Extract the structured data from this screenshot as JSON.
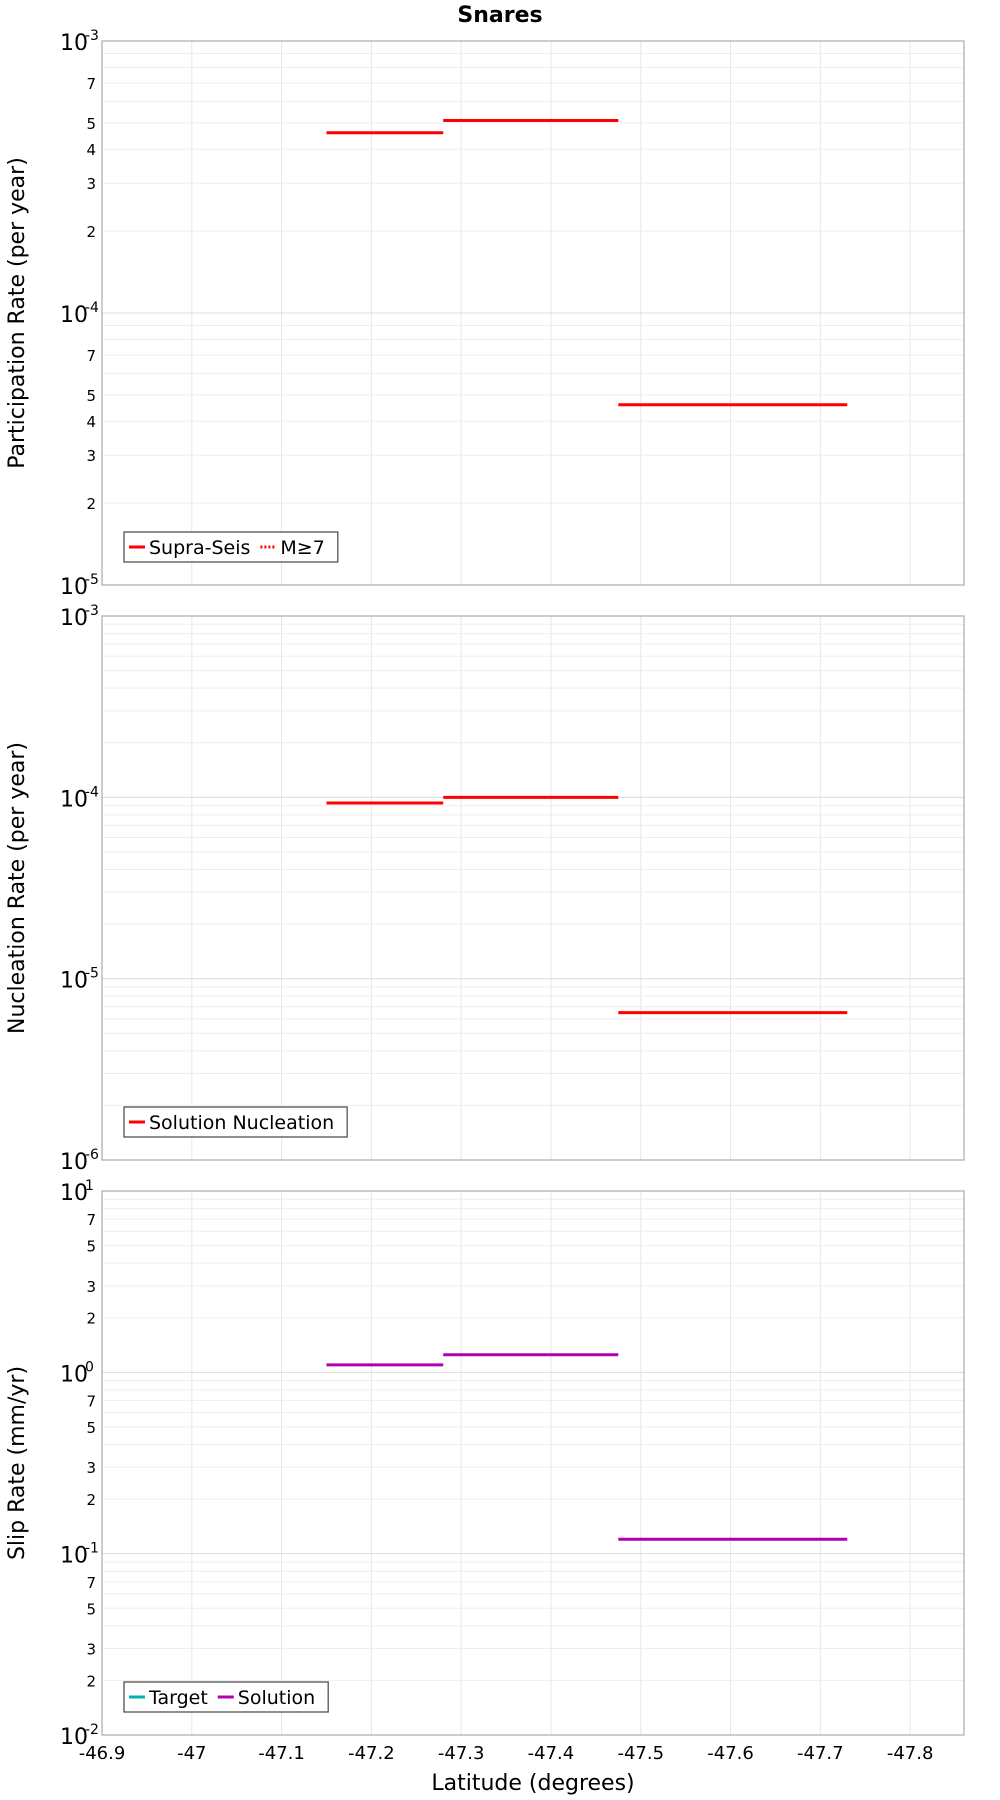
{
  "chart_data": {
    "type": "line",
    "title": "Snares",
    "xlabel": "Latitude (degrees)",
    "xlim": [
      -46.9,
      -47.86
    ],
    "x_ticks": [
      "-46.9",
      "-47",
      "-47.1",
      "-47.2",
      "-47.3",
      "-47.4",
      "-47.5",
      "-47.6",
      "-47.7",
      "-47.8"
    ],
    "x_tick_values": [
      -46.9,
      -47.0,
      -47.1,
      -47.2,
      -47.3,
      -47.4,
      -47.5,
      -47.6,
      -47.7,
      -47.8
    ],
    "grid": true,
    "panels": [
      {
        "ylabel": "Participation Rate (per year)",
        "yscale": "log",
        "ylim": [
          1e-05,
          0.001
        ],
        "major_ticks": [
          {
            "base": "10",
            "exp": "-3",
            "value": 0.001
          },
          {
            "base": "10",
            "exp": "-4",
            "value": 0.0001
          },
          {
            "base": "10",
            "exp": "-5",
            "value": 1e-05
          }
        ],
        "minor_ticks": [
          {
            "label": "7",
            "value": 0.0007
          },
          {
            "label": "5",
            "value": 0.0005
          },
          {
            "label": "4",
            "value": 0.0004
          },
          {
            "label": "3",
            "value": 0.0003
          },
          {
            "label": "2",
            "value": 0.0002
          },
          {
            "label": "7",
            "value": 7e-05
          },
          {
            "label": "5",
            "value": 5e-05
          },
          {
            "label": "4",
            "value": 4e-05
          },
          {
            "label": "3",
            "value": 3e-05
          },
          {
            "label": "2",
            "value": 2e-05
          }
        ],
        "legend_position": "bottom-left",
        "legend": [
          {
            "label": "Supra-Seis",
            "color": "#ff0000",
            "style": "solid"
          },
          {
            "label": "M≥7",
            "color": "#ff0000",
            "style": "dotted"
          }
        ],
        "series": [
          {
            "name": "Supra-Seis",
            "color": "#ff0000",
            "segments": [
              {
                "x": [
                  -47.15,
                  -47.28
                ],
                "y": 0.00046
              },
              {
                "x": [
                  -47.28,
                  -47.475
                ],
                "y": 0.00051
              },
              {
                "x": [
                  -47.475,
                  -47.73
                ],
                "y": 4.6e-05
              }
            ]
          }
        ]
      },
      {
        "ylabel": "Nucleation Rate (per year)",
        "yscale": "log",
        "ylim": [
          1e-06,
          0.001
        ],
        "major_ticks": [
          {
            "base": "10",
            "exp": "-3",
            "value": 0.001
          },
          {
            "base": "10",
            "exp": "-4",
            "value": 0.0001
          },
          {
            "base": "10",
            "exp": "-5",
            "value": 1e-05
          },
          {
            "base": "10",
            "exp": "-6",
            "value": 1e-06
          }
        ],
        "minor_ticks": [],
        "legend_position": "bottom-left",
        "legend": [
          {
            "label": "Solution Nucleation",
            "color": "#ff0000",
            "style": "solid"
          }
        ],
        "series": [
          {
            "name": "Solution Nucleation",
            "color": "#ff0000",
            "segments": [
              {
                "x": [
                  -47.15,
                  -47.28
                ],
                "y": 9.3e-05
              },
              {
                "x": [
                  -47.28,
                  -47.475
                ],
                "y": 0.0001
              },
              {
                "x": [
                  -47.475,
                  -47.73
                ],
                "y": 6.5e-06
              }
            ]
          }
        ]
      },
      {
        "ylabel": "Slip Rate (mm/yr)",
        "yscale": "log",
        "ylim": [
          0.01,
          10
        ],
        "major_ticks": [
          {
            "base": "10",
            "exp": "1",
            "value": 10
          },
          {
            "base": "10",
            "exp": "0",
            "value": 1
          },
          {
            "base": "10",
            "exp": "-1",
            "value": 0.1
          },
          {
            "base": "10",
            "exp": "-2",
            "value": 0.01
          }
        ],
        "minor_ticks": [
          {
            "label": "7",
            "value": 7
          },
          {
            "label": "5",
            "value": 5
          },
          {
            "label": "3",
            "value": 3
          },
          {
            "label": "2",
            "value": 2
          },
          {
            "label": "7",
            "value": 0.7
          },
          {
            "label": "5",
            "value": 0.5
          },
          {
            "label": "3",
            "value": 0.3
          },
          {
            "label": "2",
            "value": 0.2
          },
          {
            "label": "7",
            "value": 0.07
          },
          {
            "label": "5",
            "value": 0.05
          },
          {
            "label": "3",
            "value": 0.03
          },
          {
            "label": "2",
            "value": 0.02
          }
        ],
        "legend_position": "bottom-left",
        "legend": [
          {
            "label": "Target",
            "color": "#00b0b0",
            "style": "solid"
          },
          {
            "label": "Solution",
            "color": "#b000b0",
            "style": "solid"
          }
        ],
        "series": [
          {
            "name": "Solution",
            "color": "#b000b0",
            "segments": [
              {
                "x": [
                  -47.15,
                  -47.28
                ],
                "y": 1.1
              },
              {
                "x": [
                  -47.28,
                  -47.475
                ],
                "y": 1.25
              },
              {
                "x": [
                  -47.475,
                  -47.73
                ],
                "y": 0.12
              }
            ]
          }
        ]
      }
    ]
  }
}
